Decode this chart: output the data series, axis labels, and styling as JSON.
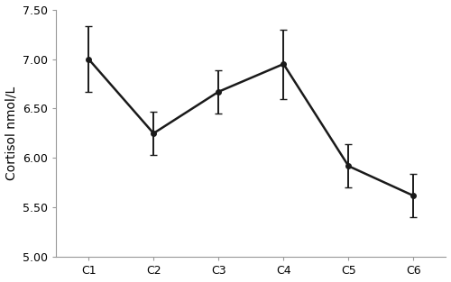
{
  "categories": [
    "C1",
    "C2",
    "C3",
    "C4",
    "C5",
    "C6"
  ],
  "values": [
    7.0,
    6.25,
    6.67,
    6.95,
    5.92,
    5.62
  ],
  "errors": [
    0.33,
    0.22,
    0.22,
    0.35,
    0.22,
    0.22
  ],
  "ylabel": "Cortisol nmol/L",
  "ylim": [
    5.0,
    7.5
  ],
  "yticks": [
    5.0,
    5.5,
    6.0,
    6.5,
    7.0,
    7.5
  ],
  "line_color": "#1a1a1a",
  "marker": "o",
  "marker_size": 4,
  "line_width": 1.8,
  "capsize": 3,
  "elinewidth": 1.4,
  "spine_color": "#999999",
  "background_color": "#ffffff",
  "tick_fontsize": 9,
  "ylabel_fontsize": 10
}
